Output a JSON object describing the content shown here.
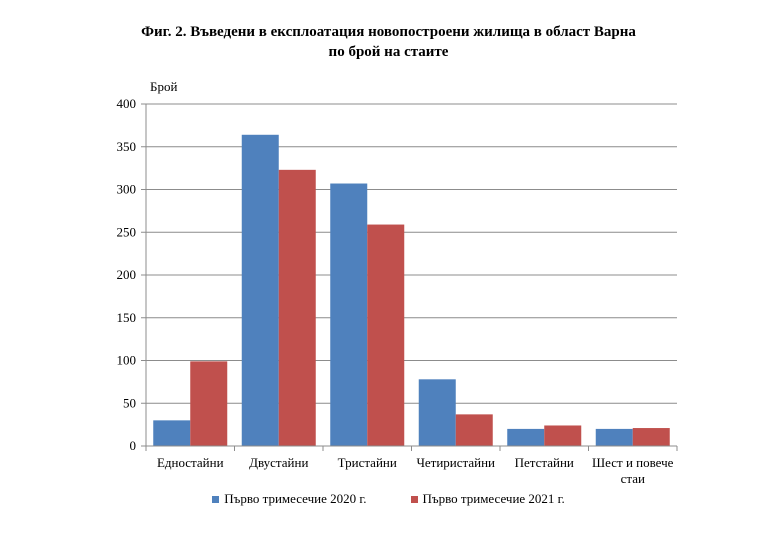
{
  "chart_data": {
    "type": "bar",
    "title_lines": [
      "Фиг. 2. Въведени в експлоатация новопостроени жилища в област Варна",
      "по брой на стаите"
    ],
    "ylabel": "Брой",
    "xlabel": "",
    "ylim": [
      0,
      400
    ],
    "yticks": [
      0,
      50,
      100,
      150,
      200,
      250,
      300,
      350,
      400
    ],
    "grid": true,
    "legend_position": "bottom",
    "categories": [
      [
        "Едностайни"
      ],
      [
        "Двустайни"
      ],
      [
        "Тристайни"
      ],
      [
        "Четиристайни"
      ],
      [
        "Петстайни"
      ],
      [
        "Шест и повече",
        "стаи"
      ]
    ],
    "series": [
      {
        "name": "Първо тримесечие 2020  г.",
        "color": "#4f81bd",
        "values": [
          30,
          364,
          307,
          78,
          20,
          20
        ]
      },
      {
        "name": "Първо тримесечие 2021  г.",
        "color": "#c0504d",
        "values": [
          99,
          323,
          259,
          37,
          24,
          21
        ]
      }
    ]
  }
}
